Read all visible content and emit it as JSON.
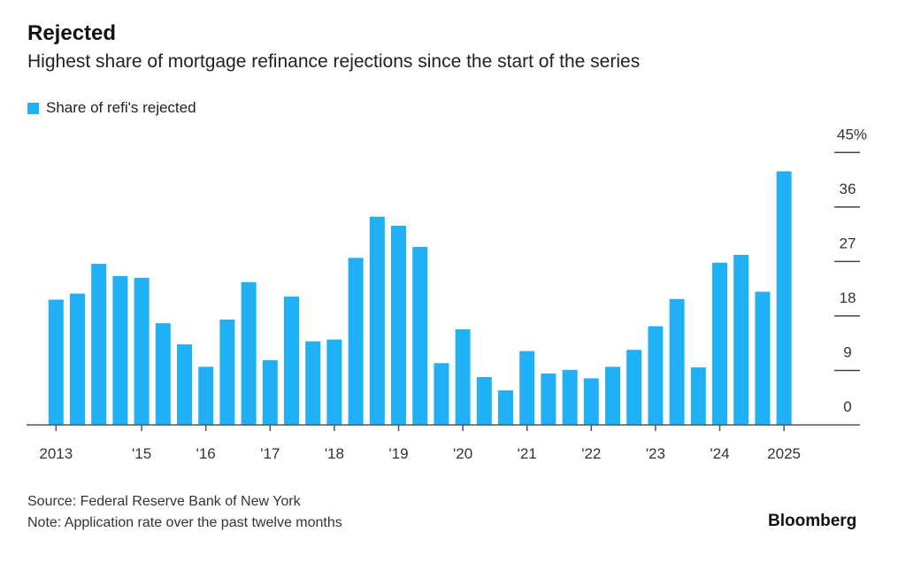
{
  "chart_data": {
    "type": "bar",
    "title": "Rejected",
    "subtitle": "Highest share of mortgage refinance rejections since the start of the series",
    "legend": [
      {
        "label": "Share of refi's rejected",
        "color": "#1fb0f5"
      }
    ],
    "legend_placement": "top-left",
    "xlabel": "",
    "ylabel": "",
    "ylim": [
      0,
      45
    ],
    "y_ticks": [
      {
        "value": 45,
        "label": "45%"
      },
      {
        "value": 36,
        "label": "36"
      },
      {
        "value": 27,
        "label": "27"
      },
      {
        "value": 18,
        "label": "18"
      },
      {
        "value": 9,
        "label": "9"
      },
      {
        "value": 0,
        "label": "0"
      }
    ],
    "y_axis_side": "right",
    "x_ticks": [
      {
        "index": 0,
        "label": "2013"
      },
      {
        "index": 4,
        "label": "'15"
      },
      {
        "index": 7,
        "label": "'16"
      },
      {
        "index": 10,
        "label": "'17"
      },
      {
        "index": 13,
        "label": "'18"
      },
      {
        "index": 16,
        "label": "'19"
      },
      {
        "index": 19,
        "label": "'20"
      },
      {
        "index": 22,
        "label": "'21"
      },
      {
        "index": 25,
        "label": "'22"
      },
      {
        "index": 28,
        "label": "'23"
      },
      {
        "index": 31,
        "label": "'24"
      },
      {
        "index": 34,
        "label": "2025"
      }
    ],
    "series": [
      {
        "name": "Share of refi's rejected",
        "values": [
          20.7,
          21.7,
          26.6,
          24.6,
          24.3,
          16.8,
          13.3,
          9.6,
          17.4,
          23.6,
          10.7,
          21.2,
          13.8,
          14.1,
          27.6,
          34.4,
          32.9,
          29.4,
          10.2,
          15.8,
          7.9,
          5.7,
          12.2,
          8.5,
          9.1,
          7.7,
          9.6,
          12.4,
          16.3,
          20.8,
          9.5,
          26.8,
          28.1,
          22.0,
          41.9
        ]
      }
    ],
    "grid": false
  },
  "footer": {
    "source": "Source: Federal Reserve Bank of New York",
    "note": "Note: Application rate over the past twelve months",
    "brand": "Bloomberg"
  }
}
